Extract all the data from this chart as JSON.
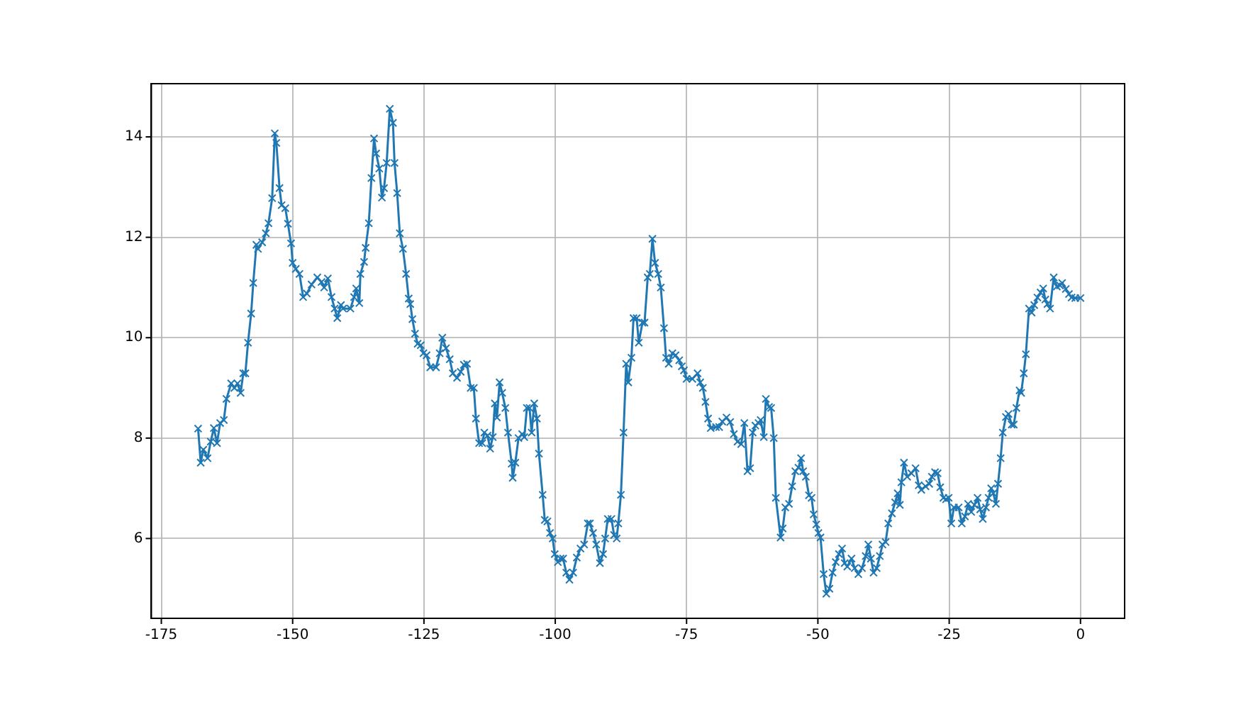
{
  "chart_data": {
    "type": "line",
    "xlim": [
      -176.9,
      8.4
    ],
    "ylim": [
      4.41,
      15.06
    ],
    "xticks": [
      -175,
      -150,
      -125,
      -100,
      -75,
      -50,
      -25,
      0
    ],
    "yticks": [
      6,
      8,
      10,
      12,
      14
    ],
    "grid": true,
    "marker": "cross",
    "line_style": "solid",
    "x": [
      -168.0,
      -167.5,
      -167.0,
      -166.2,
      -165.6,
      -165.0,
      -164.4,
      -163.8,
      -163.1,
      -162.6,
      -161.7,
      -161.1,
      -160.5,
      -159.9,
      -159.4,
      -159.0,
      -158.5,
      -157.9,
      -157.5,
      -156.9,
      -156.6,
      -155.8,
      -155.1,
      -154.6,
      -153.9,
      -153.4,
      -153.1,
      -152.5,
      -152.1,
      -151.4,
      -150.9,
      -150.3,
      -150.0,
      -149.4,
      -148.7,
      -148.0,
      -147.3,
      -146.4,
      -145.3,
      -144.5,
      -144.0,
      -143.3,
      -142.6,
      -142.0,
      -141.5,
      -140.8,
      -140.4,
      -139.0,
      -138.3,
      -137.9,
      -137.3,
      -137.1,
      -136.4,
      -136.1,
      -135.5,
      -135.0,
      -134.5,
      -134.1,
      -133.5,
      -133.0,
      -132.6,
      -132.1,
      -131.5,
      -130.9,
      -130.6,
      -130.1,
      -129.6,
      -129.0,
      -128.4,
      -127.9,
      -127.6,
      -127.2,
      -126.7,
      -126.2,
      -125.6,
      -125.1,
      -124.5,
      -123.8,
      -122.7,
      -122.0,
      -121.5,
      -120.8,
      -120.1,
      -119.5,
      -118.7,
      -118.0,
      -117.4,
      -116.8,
      -116.1,
      -115.5,
      -115.1,
      -114.5,
      -113.9,
      -113.5,
      -112.9,
      -112.4,
      -111.9,
      -111.5,
      -111.1,
      -110.6,
      -110.1,
      -109.5,
      -109.0,
      -108.3,
      -108.1,
      -107.6,
      -107.0,
      -106.3,
      -105.9,
      -105.4,
      -104.9,
      -104.5,
      -104.0,
      -103.5,
      -103.1,
      -102.4,
      -102.0,
      -101.5,
      -101.0,
      -100.5,
      -100.1,
      -99.5,
      -99.0,
      -98.5,
      -97.9,
      -97.3,
      -96.6,
      -95.9,
      -95.2,
      -94.5,
      -93.8,
      -93.4,
      -92.8,
      -92.2,
      -91.5,
      -90.9,
      -90.5,
      -90.0,
      -89.3,
      -88.8,
      -88.3,
      -88.0,
      -87.5,
      -87.0,
      -86.5,
      -86.1,
      -85.5,
      -85.1,
      -84.5,
      -84.1,
      -83.4,
      -83.0,
      -82.4,
      -82.0,
      -81.5,
      -81.0,
      -80.4,
      -79.9,
      -79.3,
      -78.9,
      -78.4,
      -77.7,
      -77.1,
      -76.4,
      -75.9,
      -75.5,
      -75.0,
      -73.9,
      -72.9,
      -72.4,
      -71.9,
      -71.4,
      -70.9,
      -70.4,
      -69.4,
      -68.8,
      -68.2,
      -67.4,
      -66.7,
      -66.0,
      -65.3,
      -64.6,
      -64.0,
      -63.4,
      -62.9,
      -62.4,
      -61.9,
      -61.3,
      -60.9,
      -60.3,
      -59.9,
      -59.3,
      -58.9,
      -58.4,
      -58.0,
      -57.1,
      -56.7,
      -56.2,
      -55.5,
      -54.9,
      -54.3,
      -53.7,
      -53.2,
      -52.8,
      -52.3,
      -51.7,
      -51.2,
      -50.8,
      -50.3,
      -49.9,
      -49.5,
      -48.9,
      -48.4,
      -47.8,
      -47.2,
      -46.6,
      -46.0,
      -45.4,
      -44.9,
      -44.4,
      -43.6,
      -43.0,
      -42.3,
      -41.6,
      -40.9,
      -40.4,
      -39.9,
      -39.4,
      -38.8,
      -38.2,
      -37.7,
      -37.1,
      -36.6,
      -35.9,
      -35.3,
      -34.8,
      -34.4,
      -34.1,
      -33.6,
      -33.0,
      -32.2,
      -31.4,
      -30.8,
      -30.3,
      -29.5,
      -28.8,
      -28.3,
      -27.7,
      -27.2,
      -26.7,
      -26.1,
      -25.6,
      -25.1,
      -24.6,
      -24.1,
      -23.2,
      -22.6,
      -22.0,
      -21.4,
      -20.8,
      -20.2,
      -19.6,
      -19.1,
      -18.6,
      -18.0,
      -17.5,
      -17.0,
      -16.6,
      -16.1,
      -15.7,
      -15.2,
      -14.8,
      -14.2,
      -13.7,
      -13.1,
      -12.7,
      -12.2,
      -11.6,
      -11.3,
      -10.8,
      -10.4,
      -9.8,
      -9.3,
      -8.8,
      -8.2,
      -7.6,
      -7.1,
      -6.7,
      -6.3,
      -5.8,
      -5.1,
      -4.5,
      -3.9,
      -3.5,
      -2.8,
      -2.2,
      -1.7,
      -1.0,
      0.0
    ],
    "series": [
      {
        "color": "#1f77b4",
        "values": [
          8.19,
          7.51,
          7.77,
          7.6,
          7.93,
          8.2,
          7.9,
          8.3,
          8.36,
          8.78,
          9.09,
          9.0,
          9.09,
          8.9,
          9.29,
          9.29,
          9.9,
          10.48,
          11.09,
          11.85,
          11.77,
          11.9,
          12.08,
          12.28,
          12.78,
          14.07,
          13.88,
          12.98,
          12.64,
          12.58,
          12.27,
          11.88,
          11.49,
          11.37,
          11.27,
          10.81,
          10.88,
          11.06,
          11.2,
          11.11,
          11.0,
          11.18,
          10.81,
          10.58,
          10.39,
          10.65,
          10.58,
          10.58,
          10.81,
          10.98,
          10.69,
          11.27,
          11.51,
          11.79,
          12.28,
          13.18,
          13.97,
          13.67,
          13.37,
          12.79,
          12.98,
          13.48,
          14.56,
          14.28,
          13.48,
          12.88,
          12.08,
          11.77,
          11.27,
          10.78,
          10.67,
          10.37,
          10.08,
          9.88,
          9.85,
          9.69,
          9.65,
          9.41,
          9.41,
          9.69,
          10.0,
          9.79,
          9.57,
          9.29,
          9.2,
          9.32,
          9.46,
          9.48,
          9.0,
          9.0,
          8.39,
          7.9,
          7.9,
          8.11,
          8.05,
          7.79,
          8.02,
          8.69,
          8.41,
          9.11,
          8.9,
          8.6,
          8.11,
          7.49,
          7.21,
          7.51,
          8.0,
          8.08,
          8.02,
          8.6,
          8.6,
          8.11,
          8.69,
          8.39,
          7.69,
          6.87,
          6.37,
          6.34,
          6.11,
          6.0,
          5.69,
          5.53,
          5.6,
          5.6,
          5.32,
          5.18,
          5.32,
          5.62,
          5.8,
          5.88,
          6.3,
          6.3,
          6.11,
          5.88,
          5.51,
          5.69,
          6.0,
          6.39,
          6.39,
          6.07,
          6.0,
          6.3,
          6.87,
          8.11,
          9.48,
          9.11,
          9.6,
          10.39,
          10.39,
          9.9,
          10.3,
          10.3,
          11.2,
          11.27,
          11.97,
          11.49,
          11.27,
          11.0,
          10.19,
          9.6,
          9.48,
          9.69,
          9.65,
          9.55,
          9.43,
          9.35,
          9.18,
          9.18,
          9.29,
          9.11,
          9.0,
          8.72,
          8.39,
          8.2,
          8.22,
          8.22,
          8.33,
          8.41,
          8.32,
          8.08,
          7.93,
          7.88,
          8.3,
          7.34,
          7.4,
          8.11,
          8.25,
          8.3,
          8.36,
          8.02,
          8.78,
          8.62,
          8.6,
          8.0,
          6.81,
          6.02,
          6.2,
          6.62,
          6.69,
          7.04,
          7.34,
          7.41,
          7.6,
          7.34,
          7.23,
          6.86,
          6.81,
          6.48,
          6.28,
          6.11,
          6.02,
          5.29,
          4.9,
          5.0,
          5.32,
          5.53,
          5.69,
          5.8,
          5.51,
          5.44,
          5.6,
          5.41,
          5.29,
          5.41,
          5.65,
          5.88,
          5.6,
          5.32,
          5.41,
          5.65,
          5.88,
          5.93,
          6.3,
          6.5,
          6.72,
          6.9,
          6.67,
          7.12,
          7.51,
          7.23,
          7.3,
          7.4,
          7.06,
          6.97,
          7.04,
          7.09,
          7.23,
          7.32,
          7.3,
          7.02,
          6.81,
          6.78,
          6.81,
          6.3,
          6.62,
          6.62,
          6.3,
          6.44,
          6.69,
          6.53,
          6.67,
          6.81,
          6.58,
          6.39,
          6.62,
          6.81,
          7.0,
          6.9,
          6.69,
          7.09,
          7.6,
          8.11,
          8.42,
          8.48,
          8.27,
          8.27,
          8.6,
          8.95,
          8.9,
          9.29,
          9.67,
          10.58,
          10.5,
          10.65,
          10.8,
          10.9,
          10.98,
          10.76,
          10.67,
          10.58,
          11.2,
          11.02,
          11.04,
          11.09,
          10.97,
          10.87,
          10.8,
          10.79,
          10.79
        ]
      }
    ]
  }
}
